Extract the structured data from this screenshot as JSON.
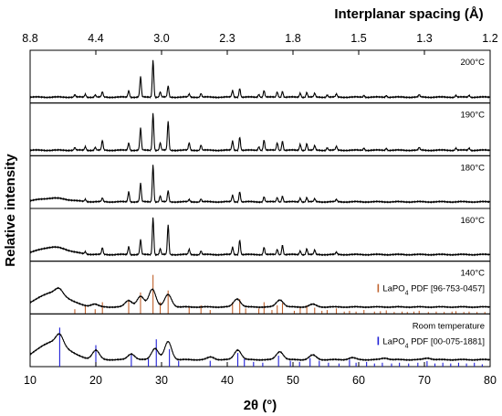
{
  "chart_data": {
    "type": "line",
    "x_axis": {
      "label": "2θ (°)",
      "range": [
        10,
        80
      ],
      "ticks": [
        10,
        20,
        30,
        40,
        50,
        60,
        70,
        80
      ]
    },
    "top_axis": {
      "label": "Interplanar spacing (Å)",
      "tick_labels": [
        "8.8",
        "4.4",
        "3.0",
        "2.3",
        "1.8",
        "1.5",
        "1.3",
        "1.2"
      ],
      "tick_positions_2theta": [
        10,
        20,
        30,
        40,
        50,
        60,
        70,
        80
      ]
    },
    "y_axis": {
      "label": "Relative intensity"
    },
    "panels": [
      {
        "label": "200°C",
        "broad": false,
        "baseline": 0.06,
        "hump": 0,
        "peaks": [
          [
            16.8,
            0.06
          ],
          [
            18.4,
            0.08
          ],
          [
            19.9,
            0.06
          ],
          [
            21.0,
            0.14
          ],
          [
            25.0,
            0.18
          ],
          [
            26.8,
            0.55
          ],
          [
            28.7,
            1.0
          ],
          [
            29.8,
            0.14
          ],
          [
            31.0,
            0.3
          ],
          [
            34.2,
            0.08
          ],
          [
            36.0,
            0.1
          ],
          [
            40.8,
            0.18
          ],
          [
            41.9,
            0.24
          ],
          [
            44.8,
            0.08
          ],
          [
            45.6,
            0.18
          ],
          [
            47.6,
            0.14
          ],
          [
            48.4,
            0.16
          ],
          [
            51.1,
            0.11
          ],
          [
            52.1,
            0.13
          ],
          [
            53.3,
            0.1
          ],
          [
            55.2,
            0.06
          ],
          [
            56.6,
            0.08
          ],
          [
            60.8,
            0.05
          ],
          [
            64.2,
            0.05
          ],
          [
            69.2,
            0.06
          ],
          [
            74.8,
            0.05
          ],
          [
            76.8,
            0.05
          ]
        ],
        "ref_lines": []
      },
      {
        "label": "190°C",
        "broad": false,
        "baseline": 0.05,
        "hump": 0,
        "peaks": [
          [
            16.8,
            0.07
          ],
          [
            18.4,
            0.1
          ],
          [
            19.9,
            0.08
          ],
          [
            21.0,
            0.26
          ],
          [
            25.0,
            0.2
          ],
          [
            26.8,
            0.6
          ],
          [
            28.7,
            1.0
          ],
          [
            29.8,
            0.2
          ],
          [
            31.0,
            0.78
          ],
          [
            34.2,
            0.2
          ],
          [
            36.0,
            0.14
          ],
          [
            40.8,
            0.25
          ],
          [
            41.9,
            0.36
          ],
          [
            44.8,
            0.1
          ],
          [
            45.6,
            0.28
          ],
          [
            47.6,
            0.2
          ],
          [
            48.4,
            0.25
          ],
          [
            51.1,
            0.16
          ],
          [
            52.1,
            0.18
          ],
          [
            53.3,
            0.12
          ],
          [
            55.2,
            0.07
          ],
          [
            56.6,
            0.1
          ],
          [
            60.8,
            0.06
          ],
          [
            64.2,
            0.06
          ],
          [
            69.2,
            0.07
          ],
          [
            74.8,
            0.06
          ],
          [
            76.8,
            0.06
          ]
        ],
        "ref_lines": []
      },
      {
        "label": "180°C",
        "broad": false,
        "baseline": 0.08,
        "hump": 0.1,
        "peaks": [
          [
            18.4,
            0.06
          ],
          [
            21.0,
            0.1
          ],
          [
            25.0,
            0.28
          ],
          [
            26.8,
            0.5
          ],
          [
            28.7,
            1.0
          ],
          [
            29.8,
            0.16
          ],
          [
            31.0,
            0.3
          ],
          [
            34.2,
            0.06
          ],
          [
            36.0,
            0.08
          ],
          [
            40.8,
            0.18
          ],
          [
            41.9,
            0.28
          ],
          [
            45.6,
            0.14
          ],
          [
            47.6,
            0.12
          ],
          [
            48.4,
            0.16
          ],
          [
            51.1,
            0.1
          ],
          [
            52.1,
            0.12
          ],
          [
            53.3,
            0.08
          ],
          [
            56.6,
            0.06
          ]
        ],
        "ref_lines": []
      },
      {
        "label": "160°C",
        "broad": false,
        "baseline": 0.08,
        "hump": 0.2,
        "peaks": [
          [
            18.4,
            0.06
          ],
          [
            21.0,
            0.18
          ],
          [
            25.0,
            0.22
          ],
          [
            26.8,
            0.4
          ],
          [
            28.7,
            1.0
          ],
          [
            29.8,
            0.16
          ],
          [
            31.0,
            0.8
          ],
          [
            34.2,
            0.14
          ],
          [
            36.0,
            0.1
          ],
          [
            40.8,
            0.2
          ],
          [
            41.9,
            0.4
          ],
          [
            45.6,
            0.2
          ],
          [
            47.6,
            0.14
          ],
          [
            48.4,
            0.26
          ],
          [
            51.1,
            0.1
          ],
          [
            52.1,
            0.16
          ],
          [
            53.3,
            0.12
          ],
          [
            56.6,
            0.06
          ]
        ],
        "ref_lines": []
      },
      {
        "label": "140°C",
        "broad": true,
        "baseline": 0.1,
        "hump": 0.45,
        "peaks": [
          [
            14.4,
            0.15
          ],
          [
            19.8,
            0.08
          ],
          [
            25.0,
            0.2
          ],
          [
            26.8,
            0.32
          ],
          [
            28.6,
            0.55
          ],
          [
            31.0,
            0.38
          ],
          [
            41.5,
            0.25
          ],
          [
            48.0,
            0.22
          ],
          [
            53.0,
            0.08
          ]
        ],
        "ref_lines": [
          [
            16.8,
            0.12
          ],
          [
            18.4,
            0.2
          ],
          [
            19.9,
            0.12
          ],
          [
            21.0,
            0.3
          ],
          [
            25.0,
            0.35
          ],
          [
            26.8,
            0.55
          ],
          [
            28.7,
            1.0
          ],
          [
            29.8,
            0.3
          ],
          [
            31.0,
            0.6
          ],
          [
            34.2,
            0.2
          ],
          [
            36.0,
            0.22
          ],
          [
            37.4,
            0.1
          ],
          [
            40.8,
            0.3
          ],
          [
            41.9,
            0.38
          ],
          [
            42.8,
            0.14
          ],
          [
            44.8,
            0.14
          ],
          [
            45.6,
            0.3
          ],
          [
            46.8,
            0.1
          ],
          [
            47.6,
            0.22
          ],
          [
            48.4,
            0.28
          ],
          [
            50.2,
            0.08
          ],
          [
            51.1,
            0.18
          ],
          [
            52.1,
            0.22
          ],
          [
            53.3,
            0.16
          ],
          [
            54.4,
            0.08
          ],
          [
            55.2,
            0.1
          ],
          [
            56.6,
            0.14
          ],
          [
            57.8,
            0.06
          ],
          [
            58.6,
            0.08
          ],
          [
            59.6,
            0.06
          ],
          [
            60.8,
            0.1
          ],
          [
            62.4,
            0.06
          ],
          [
            63.3,
            0.07
          ],
          [
            64.2,
            0.09
          ],
          [
            65.4,
            0.05
          ],
          [
            66.6,
            0.06
          ],
          [
            67.4,
            0.05
          ],
          [
            68.4,
            0.06
          ],
          [
            69.2,
            0.08
          ],
          [
            70.6,
            0.05
          ],
          [
            71.8,
            0.06
          ],
          [
            73.0,
            0.05
          ],
          [
            74.2,
            0.06
          ],
          [
            74.8,
            0.07
          ],
          [
            76.0,
            0.05
          ],
          [
            76.8,
            0.06
          ],
          [
            78.0,
            0.05
          ],
          [
            79.2,
            0.05
          ]
        ],
        "ref_color": "#c0622d",
        "ref_label": "LaPO",
        "ref_label_sub": "4",
        "ref_label_tail": " PDF [96-753-0457]"
      },
      {
        "label": "Room temperature",
        "broad": true,
        "baseline": 0.1,
        "hump": 0.55,
        "peaks": [
          [
            14.5,
            0.28
          ],
          [
            20.0,
            0.28
          ],
          [
            25.4,
            0.18
          ],
          [
            29.0,
            0.35
          ],
          [
            31.0,
            0.55
          ],
          [
            37.5,
            0.08
          ],
          [
            41.6,
            0.3
          ],
          [
            48.0,
            0.25
          ],
          [
            53.0,
            0.14
          ],
          [
            59.0,
            0.06
          ],
          [
            64.0,
            0.05
          ],
          [
            70.5,
            0.05
          ]
        ],
        "ref_lines": [
          [
            14.5,
            1.0
          ],
          [
            20.0,
            0.55
          ],
          [
            25.4,
            0.3
          ],
          [
            28.0,
            0.2
          ],
          [
            29.2,
            0.7
          ],
          [
            31.2,
            0.45
          ],
          [
            32.6,
            0.15
          ],
          [
            37.4,
            0.15
          ],
          [
            41.6,
            0.35
          ],
          [
            42.6,
            0.2
          ],
          [
            44.0,
            0.12
          ],
          [
            45.4,
            0.1
          ],
          [
            47.8,
            0.28
          ],
          [
            49.6,
            0.15
          ],
          [
            51.0,
            0.12
          ],
          [
            52.6,
            0.22
          ],
          [
            54.0,
            0.15
          ],
          [
            55.4,
            0.1
          ],
          [
            57.0,
            0.08
          ],
          [
            58.6,
            0.18
          ],
          [
            59.6,
            0.1
          ],
          [
            61.2,
            0.12
          ],
          [
            62.4,
            0.08
          ],
          [
            63.6,
            0.1
          ],
          [
            65.0,
            0.08
          ],
          [
            66.2,
            0.1
          ],
          [
            67.6,
            0.08
          ],
          [
            69.0,
            0.1
          ],
          [
            70.4,
            0.14
          ],
          [
            71.6,
            0.08
          ],
          [
            72.8,
            0.1
          ],
          [
            74.0,
            0.08
          ],
          [
            75.2,
            0.1
          ],
          [
            76.4,
            0.08
          ],
          [
            77.6,
            0.1
          ],
          [
            78.8,
            0.06
          ]
        ],
        "ref_color": "#1f1fd6",
        "ref_label": "LaPO",
        "ref_label_sub": "4",
        "ref_label_tail": " PDF [00-075-1881]"
      }
    ]
  }
}
